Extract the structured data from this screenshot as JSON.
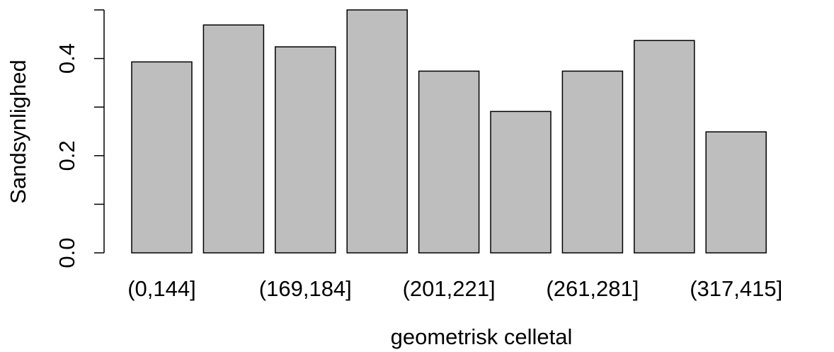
{
  "chart_data": {
    "type": "bar",
    "x_label": "geometrisk celletal",
    "y_label": "Sandsynlighed",
    "categories": [
      "(0,144]",
      null,
      "(169,184]",
      null,
      "(201,221]",
      null,
      "(261,281]",
      null,
      "(317,415]",
      null
    ],
    "values": [
      0.393,
      0.469,
      0.424,
      0.5,
      0.374,
      0.291,
      0.374,
      0.437,
      0.249,
      0
    ],
    "color": "#bebebe",
    "ylim": [
      0,
      0.5
    ],
    "yticks": [
      {
        "value": 0,
        "label": "0.0"
      },
      0.2,
      0.4
    ],
    "minor_yticks": [
      0.1,
      0.3,
      0.5
    ]
  }
}
